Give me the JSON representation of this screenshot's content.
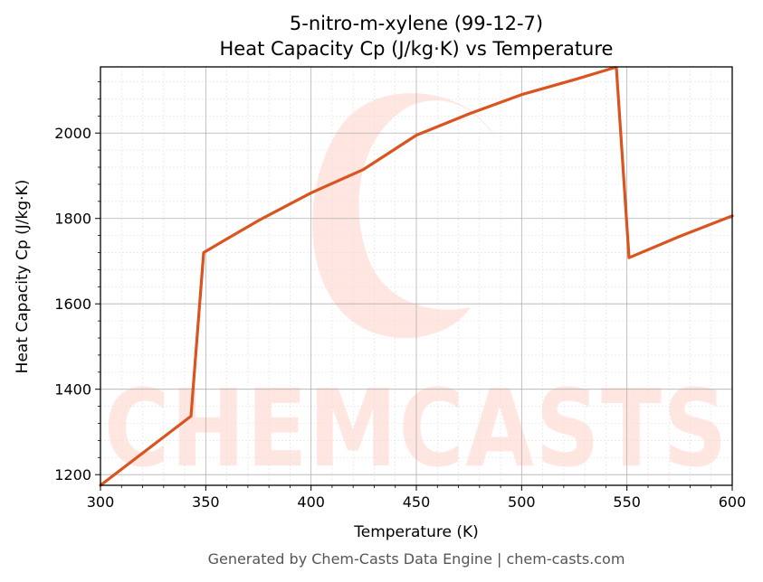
{
  "chart_data": {
    "type": "line",
    "title_line1": "5-nitro-m-xylene (99-12-7)",
    "title_line2": "Heat Capacity Cp (J/kg·K) vs Temperature",
    "xlabel": "Temperature (K)",
    "ylabel": "Heat Capacity Cp (J/kg·K)",
    "xlim": [
      300,
      600
    ],
    "ylim": [
      1175,
      2155
    ],
    "x_ticks": [
      300,
      350,
      400,
      450,
      500,
      550,
      600
    ],
    "y_ticks": [
      1200,
      1400,
      1600,
      1800,
      2000
    ],
    "x_tick_labels": [
      "300",
      "350",
      "400",
      "450",
      "500",
      "550",
      "600"
    ],
    "y_tick_labels": [
      "1200",
      "1400",
      "1600",
      "1800",
      "2000"
    ],
    "grid": true,
    "series": [
      {
        "color": "#d9541e",
        "x": [
          300,
          343,
          349,
          360,
          375,
          400,
          425,
          450,
          475,
          500,
          525,
          544,
          545,
          551,
          575,
          600
        ],
        "y": [
          1175,
          1337,
          1720,
          1752,
          1795,
          1860,
          1915,
          1995,
          2045,
          2090,
          2125,
          2153,
          2153,
          1708,
          1758,
          1806
        ]
      }
    ]
  },
  "footer": "Generated by Chem-Casts Data Engine | chem-casts.com",
  "watermark": {
    "text": "CHEMCASTS",
    "color": "#ffe6e1"
  }
}
